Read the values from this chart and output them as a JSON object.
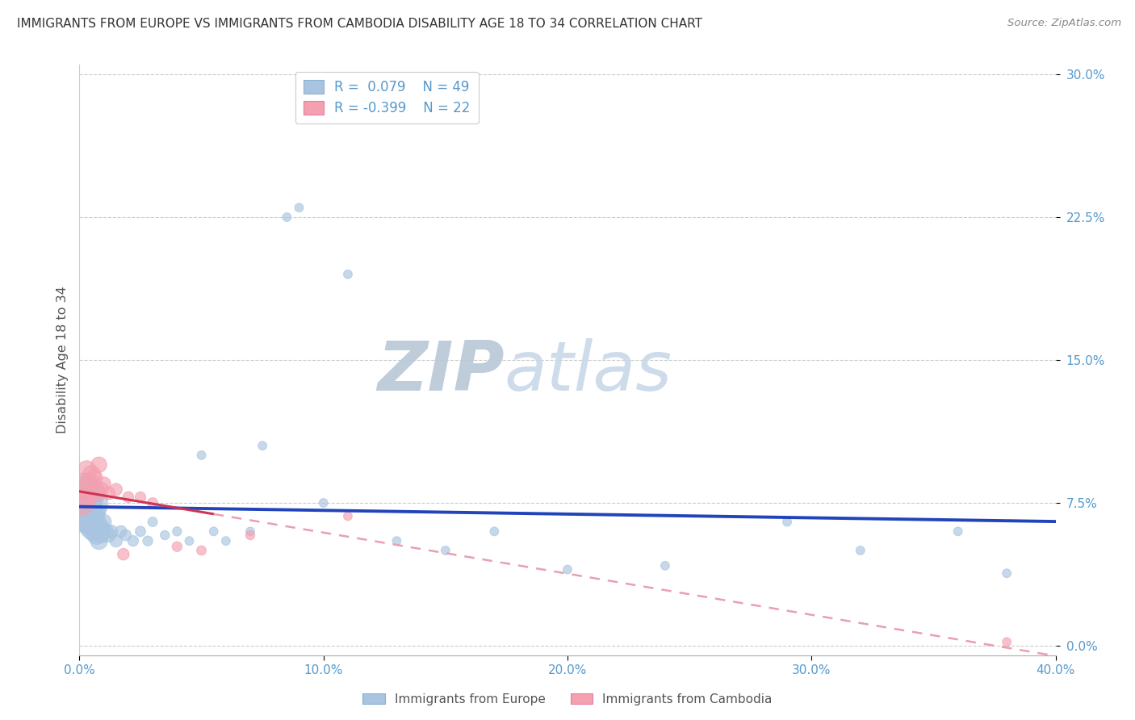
{
  "title": "IMMIGRANTS FROM EUROPE VS IMMIGRANTS FROM CAMBODIA DISABILITY AGE 18 TO 34 CORRELATION CHART",
  "source": "Source: ZipAtlas.com",
  "ylabel": "Disability Age 18 to 34",
  "xlim": [
    0.0,
    0.4
  ],
  "ylim": [
    -0.005,
    0.305
  ],
  "legend_label1": "Immigrants from Europe",
  "legend_label2": "Immigrants from Cambodia",
  "R1": 0.079,
  "N1": 49,
  "R2": -0.399,
  "N2": 22,
  "europe_x": [
    0.001,
    0.002,
    0.002,
    0.003,
    0.003,
    0.004,
    0.004,
    0.005,
    0.005,
    0.006,
    0.006,
    0.007,
    0.007,
    0.008,
    0.008,
    0.009,
    0.009,
    0.01,
    0.011,
    0.012,
    0.013,
    0.015,
    0.017,
    0.019,
    0.022,
    0.025,
    0.028,
    0.03,
    0.035,
    0.04,
    0.045,
    0.05,
    0.055,
    0.06,
    0.07,
    0.075,
    0.085,
    0.09,
    0.1,
    0.11,
    0.13,
    0.15,
    0.17,
    0.2,
    0.24,
    0.29,
    0.32,
    0.36,
    0.38
  ],
  "europe_y": [
    0.075,
    0.08,
    0.07,
    0.068,
    0.075,
    0.072,
    0.065,
    0.068,
    0.062,
    0.07,
    0.06,
    0.065,
    0.058,
    0.06,
    0.055,
    0.062,
    0.058,
    0.065,
    0.06,
    0.058,
    0.06,
    0.055,
    0.06,
    0.058,
    0.055,
    0.06,
    0.055,
    0.065,
    0.058,
    0.06,
    0.055,
    0.1,
    0.06,
    0.055,
    0.06,
    0.105,
    0.225,
    0.23,
    0.075,
    0.195,
    0.055,
    0.05,
    0.06,
    0.04,
    0.042,
    0.065,
    0.05,
    0.06,
    0.038
  ],
  "europe_size": [
    350,
    220,
    180,
    140,
    120,
    100,
    90,
    80,
    70,
    65,
    55,
    50,
    45,
    42,
    38,
    35,
    32,
    30,
    28,
    25,
    22,
    20,
    18,
    16,
    15,
    14,
    13,
    12,
    11,
    11,
    10,
    10,
    10,
    10,
    10,
    10,
    10,
    10,
    10,
    10,
    10,
    10,
    10,
    10,
    10,
    10,
    10,
    10,
    10
  ],
  "cambodia_x": [
    0.001,
    0.002,
    0.003,
    0.003,
    0.004,
    0.005,
    0.006,
    0.007,
    0.008,
    0.009,
    0.01,
    0.012,
    0.015,
    0.018,
    0.02,
    0.025,
    0.03,
    0.04,
    0.05,
    0.07,
    0.11,
    0.38
  ],
  "cambodia_y": [
    0.075,
    0.082,
    0.078,
    0.092,
    0.085,
    0.09,
    0.088,
    0.08,
    0.095,
    0.082,
    0.085,
    0.08,
    0.082,
    0.048,
    0.078,
    0.078,
    0.075,
    0.052,
    0.05,
    0.058,
    0.068,
    0.002
  ],
  "cambodia_size": [
    80,
    65,
    55,
    50,
    45,
    42,
    38,
    35,
    32,
    28,
    25,
    22,
    20,
    18,
    16,
    15,
    14,
    13,
    12,
    11,
    10,
    10
  ],
  "watermark_zip": "ZIP",
  "watermark_atlas": "atlas",
  "blue_color": "#a8c4e0",
  "pink_color": "#f4a0b0",
  "line_blue": "#2244bb",
  "line_pink": "#cc3355",
  "line_dashed_pink": "#e8a0b0",
  "grid_color": "#cccccc",
  "title_color": "#333333",
  "axis_color": "#5599cc",
  "watermark_zip_color": "#b8c8d8",
  "watermark_atlas_color": "#c8d8e8",
  "legend_box_color": "#5599cc"
}
